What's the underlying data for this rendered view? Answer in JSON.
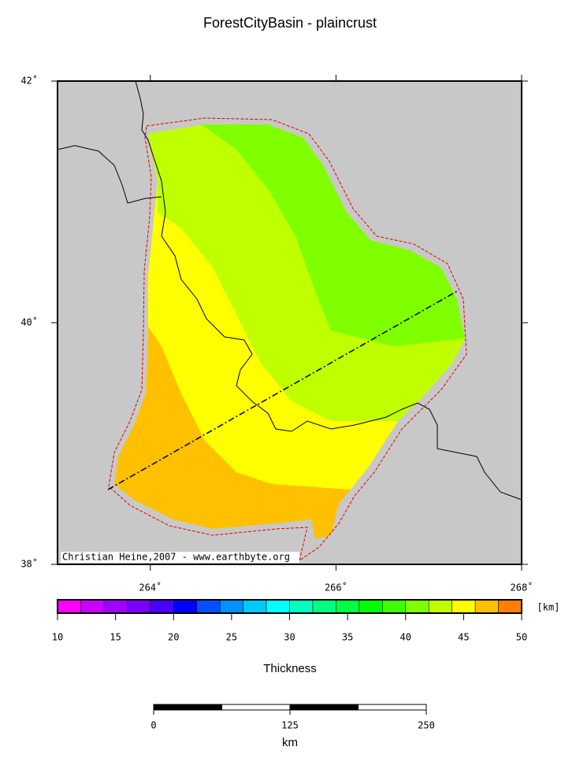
{
  "title": "ForestCityBasin - plaincrust",
  "map": {
    "lonlim": [
      263,
      268
    ],
    "latlim": [
      38,
      42
    ],
    "lon_ticks": [
      {
        "value": 264,
        "label": "264˚"
      },
      {
        "value": 266,
        "label": "266˚"
      },
      {
        "value": 268,
        "label": "268˚"
      }
    ],
    "lat_ticks": [
      {
        "value": 38,
        "label": "38˚"
      },
      {
        "value": 40,
        "label": "40˚"
      },
      {
        "value": 42,
        "label": "42˚"
      }
    ],
    "credit": "Christian Heine,2007 - www.earthbyte.org"
  },
  "colorbar": {
    "range": [
      10,
      50
    ],
    "step": 2,
    "unit": "[km]",
    "label": "Thickness",
    "ticks": [
      10,
      15,
      20,
      25,
      30,
      35,
      40,
      45,
      50
    ],
    "colors": [
      "#ff00ff",
      "#c800ff",
      "#a000ff",
      "#7800ff",
      "#4a00ff",
      "#0000ff",
      "#0050ff",
      "#0090ff",
      "#00c8ff",
      "#00ffff",
      "#00ffc0",
      "#00ff80",
      "#00ff40",
      "#00ff00",
      "#40ff00",
      "#80ff00",
      "#c0ff00",
      "#ffff00",
      "#ffc000",
      "#ff8000"
    ]
  },
  "scalebar": {
    "range": [
      0,
      250
    ],
    "ticks": [
      0,
      125,
      250
    ],
    "unit": "km"
  }
}
